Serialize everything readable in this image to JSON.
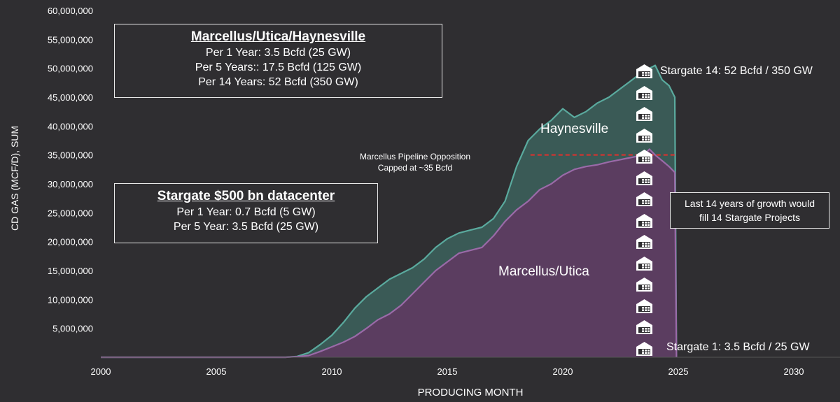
{
  "chart_data": {
    "type": "area",
    "xlabel": "PRODUCING MONTH",
    "ylabel": "CD GAS (MCF/D), SUM",
    "xlim": [
      2000,
      2032
    ],
    "ylim": [
      0,
      60000000
    ],
    "x_ticks": [
      "2000",
      "2005",
      "2010",
      "2015",
      "2020",
      "2025",
      "2030"
    ],
    "y_ticks": [
      "5,000,000",
      "10,000,000",
      "15,000,000",
      "20,000,000",
      "25,000,000",
      "30,000,000",
      "35,000,000",
      "40,000,000",
      "45,000,000",
      "50,000,000",
      "55,000,000",
      "60,000,000"
    ],
    "grid": false,
    "x": [
      2000,
      2008,
      2008.5,
      2009,
      2009.5,
      2010,
      2010.5,
      2011,
      2011.5,
      2012,
      2012.5,
      2013,
      2013.5,
      2014,
      2014.5,
      2015,
      2015.5,
      2016,
      2016.5,
      2017,
      2017.5,
      2018,
      2018.5,
      2019,
      2019.5,
      2020,
      2020.5,
      2021,
      2021.5,
      2022,
      2022.5,
      2023,
      2023.5,
      2023.75,
      2024,
      2024.3,
      2024.6,
      2024.85,
      2024.92
    ],
    "series": [
      {
        "name": "Marcellus/Utica",
        "color": "#9a6aa8",
        "values": [
          0,
          0,
          100000,
          300000,
          1000000,
          1800000,
          2600000,
          3600000,
          5000000,
          6500000,
          7500000,
          9000000,
          11000000,
          13000000,
          15000000,
          16500000,
          18000000,
          18500000,
          19000000,
          21000000,
          23500000,
          25500000,
          27000000,
          29000000,
          30000000,
          31500000,
          32500000,
          33000000,
          33300000,
          33800000,
          34200000,
          34600000,
          35000000,
          36000000,
          35000000,
          34000000,
          33000000,
          32000000,
          0
        ]
      },
      {
        "name": "Haynesville",
        "color": "#5aaa9e",
        "values": [
          0,
          0,
          150000,
          800000,
          2200000,
          3800000,
          6000000,
          8500000,
          10500000,
          12000000,
          13500000,
          14500000,
          15500000,
          17000000,
          19000000,
          20500000,
          21500000,
          22000000,
          22500000,
          24000000,
          27000000,
          33000000,
          37500000,
          39500000,
          41000000,
          43000000,
          41500000,
          42500000,
          44000000,
          45000000,
          46500000,
          48000000,
          49500000,
          50000000,
          50500000,
          48000000,
          47000000,
          45000000,
          0
        ]
      }
    ],
    "annotations": {
      "box_a": {
        "title": "Marcellus/Utica/Haynesville",
        "lines": [
          "Per 1 Year:  3.5 Bcfd (25 GW)",
          "Per 5 Years::  17.5 Bcfd (125 GW)",
          "Per 14 Years:  52 Bcfd (350 GW)"
        ]
      },
      "box_b": {
        "title": "Stargate $500 bn datacenter",
        "lines": [
          "Per 1 Year:  0.7 Bcfd (5 GW)",
          "Per 5 Year: 3.5 Bcfd (25 GW)"
        ]
      },
      "box_c": {
        "lines": [
          "Last 14 years of growth would",
          "fill 14 Stargate Projects"
        ]
      },
      "cap_line": {
        "value": 35000000,
        "color": "#e0302e",
        "lines": [
          "Marcellus Pipeline Opposition",
          "Capped at ~35 Bcfd"
        ]
      },
      "region_haynesville": "Haynesville",
      "region_marcellus": "Marcellus/Utica",
      "stargate_top": "Stargate 14:  52 Bcfd / 350 GW",
      "stargate_bottom": "Stargate 1:  3.5 Bcfd / 25 GW",
      "datacenter_icon_count": 14
    }
  },
  "colors": {
    "background": "#2f2e31",
    "marcellus_fill": "#5b3d60",
    "haynesville_fill": "#3a5a56"
  }
}
